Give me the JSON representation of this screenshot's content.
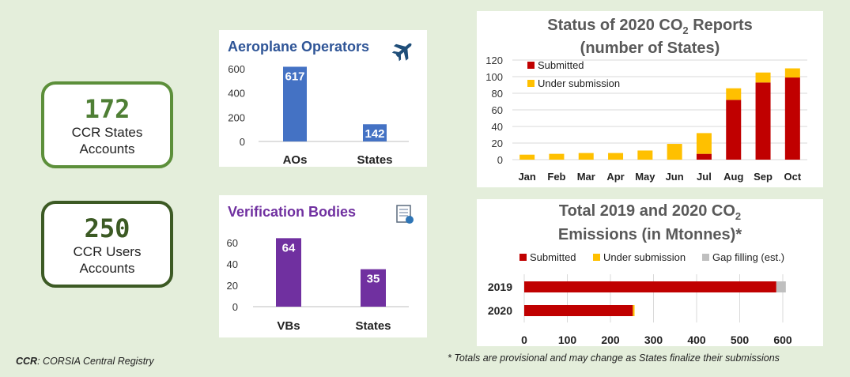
{
  "kpis": [
    {
      "number": "172",
      "line1": "CCR States",
      "line2": "Accounts"
    },
    {
      "number": "250",
      "line1": "CCR Users",
      "line2": "Accounts"
    }
  ],
  "footnotes": {
    "ccr_abbr": "CCR",
    "ccr_text": ": CORSIA Central Registry",
    "provisional": "* Totals are provisional and may change as States finalize their submissions"
  },
  "colors": {
    "ao": "#4472c4",
    "vb": "#7030a0",
    "submitted": "#c00000",
    "under": "#ffc000",
    "gap": "#bfbfbf",
    "title_ao": "#2f5597",
    "title_vb": "#7030a0",
    "title_right": "#595959"
  },
  "chart_data": [
    {
      "type": "bar",
      "title": "Aeroplane Operators",
      "icon": "airplane-icon",
      "categories": [
        "AOs",
        "States"
      ],
      "values": [
        617,
        142
      ],
      "yticks": [
        0,
        200,
        400,
        600
      ],
      "ylim": [
        0,
        620
      ]
    },
    {
      "type": "bar",
      "title": "Verification Bodies",
      "icon": "certificate-icon",
      "categories": [
        "VBs",
        "States"
      ],
      "values": [
        64,
        35
      ],
      "yticks": [
        0,
        20,
        40,
        60
      ],
      "ylim": [
        0,
        65
      ]
    },
    {
      "type": "bar",
      "stacked": true,
      "title_line1": "Status of 2020 CO",
      "title_sub": "2",
      "title_tail": " Reports",
      "title_line2": "(number of States)",
      "categories": [
        "Jan",
        "Feb",
        "Mar",
        "Apr",
        "May",
        "Jun",
        "Jul",
        "Aug",
        "Sep",
        "Oct"
      ],
      "series": [
        {
          "name": "Submitted",
          "values": [
            0,
            0,
            0,
            0,
            0,
            0,
            7,
            72,
            93,
            99
          ]
        },
        {
          "name": "Under submission",
          "values": [
            6,
            7,
            8,
            8,
            11,
            19,
            25,
            14,
            12,
            11
          ]
        }
      ],
      "yticks": [
        0,
        20,
        40,
        60,
        80,
        100,
        120
      ],
      "ylim": [
        0,
        120
      ],
      "grid": true,
      "legend": "top-left"
    },
    {
      "type": "bar",
      "orientation": "horizontal",
      "stacked": true,
      "title_line1": "Total 2019 and 2020 CO",
      "title_sub": "2",
      "title_line2": "Emissions (in Mtonnes)*",
      "categories": [
        "2019",
        "2020"
      ],
      "series": [
        {
          "name": "Submitted",
          "values": [
            585,
            252
          ]
        },
        {
          "name": "Under submission",
          "values": [
            0,
            4
          ]
        },
        {
          "name": "Gap filling (est.)",
          "values": [
            22,
            0
          ]
        }
      ],
      "xticks": [
        0,
        100,
        200,
        300,
        400,
        500,
        600
      ],
      "xlim": [
        0,
        600
      ],
      "grid": true,
      "legend": "top"
    }
  ]
}
